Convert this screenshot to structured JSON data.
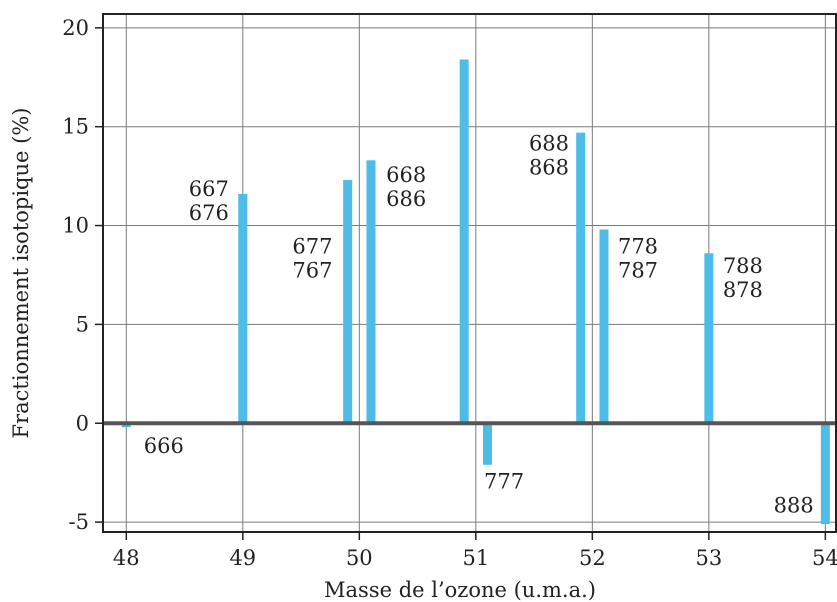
{
  "chart_data": {
    "type": "bar",
    "title": "",
    "xlabel": "Masse de l’ozone (u.m.a.)",
    "ylabel": "Fractionnement isotopique (%)",
    "xlim": [
      47.8,
      54.1
    ],
    "ylim": [
      -5.5,
      20.7
    ],
    "xticks": [
      48,
      49,
      50,
      51,
      52,
      53,
      54
    ],
    "xtick_labels": [
      "48",
      "49",
      "50",
      "51",
      "52",
      "53",
      "54"
    ],
    "yticks": [
      -5,
      0,
      5,
      10,
      15,
      20
    ],
    "ytick_labels": [
      "-5",
      "0",
      "5",
      "10",
      "15",
      "20"
    ],
    "grid": true,
    "bar_color": "#4dbde8",
    "zero_line_color": "#555555",
    "series": [
      {
        "x": [
          48.0,
          49.0,
          49.9,
          50.1,
          50.9,
          51.1,
          51.9,
          52.1,
          53.0,
          54.0
        ],
        "values": [
          -0.2,
          11.6,
          12.3,
          13.3,
          18.4,
          -2.1,
          14.7,
          9.8,
          8.6,
          -5.1
        ]
      }
    ],
    "annotations": [
      {
        "lines": [
          "666"
        ],
        "x": 48.15,
        "y": -1.1,
        "align": "start"
      },
      {
        "lines": [
          "667",
          "676"
        ],
        "x": 48.88,
        "y": 11.9,
        "align": "end"
      },
      {
        "lines": [
          "677",
          "767"
        ],
        "x": 49.77,
        "y": 9.0,
        "align": "end"
      },
      {
        "lines": [
          "668",
          "686"
        ],
        "x": 50.23,
        "y": 12.6,
        "align": "start"
      },
      {
        "lines": [
          "777"
        ],
        "x": 51.07,
        "y": -2.9,
        "align": "start"
      },
      {
        "lines": [
          "688",
          "868"
        ],
        "x": 51.8,
        "y": 14.2,
        "align": "end"
      },
      {
        "lines": [
          "778",
          "787"
        ],
        "x": 52.22,
        "y": 9.0,
        "align": "start"
      },
      {
        "lines": [
          "788",
          "878"
        ],
        "x": 53.12,
        "y": 8.0,
        "align": "start"
      },
      {
        "lines": [
          "888"
        ],
        "x": 53.9,
        "y": -4.1,
        "align": "end"
      }
    ]
  }
}
